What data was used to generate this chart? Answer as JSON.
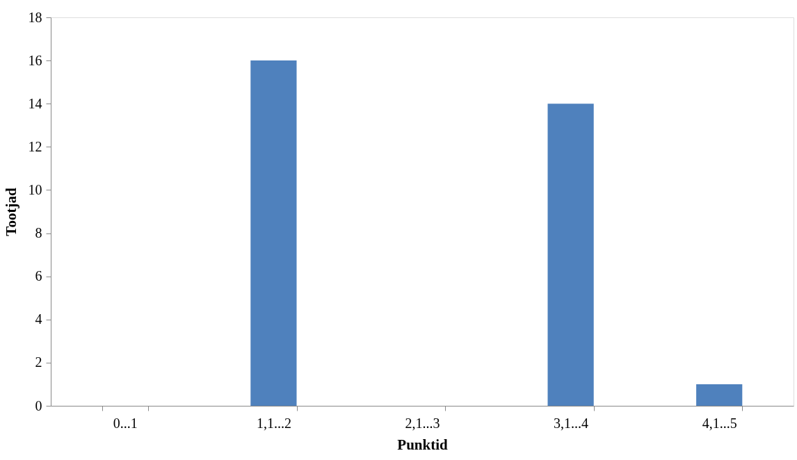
{
  "chart_data": {
    "type": "bar",
    "xlabel": "Punktid",
    "ylabel": "Tootjad",
    "categories": [
      "0...1",
      "1,1...2",
      "2,1...3",
      "3,1...4",
      "4,1...5"
    ],
    "values": [
      0,
      16,
      0,
      14,
      1
    ],
    "color": "#4f81bd",
    "ylim": [
      0,
      18
    ],
    "yticks": [
      0,
      2,
      4,
      6,
      8,
      10,
      12,
      14,
      16,
      18
    ],
    "grid": false
  }
}
